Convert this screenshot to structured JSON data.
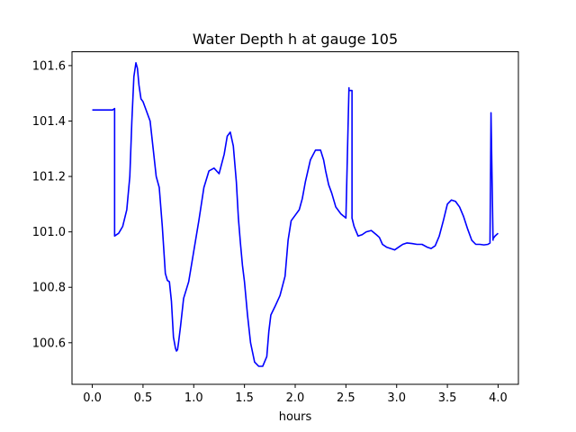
{
  "chart_data": {
    "type": "line",
    "title": "Water Depth h at gauge 105",
    "xlabel": "hours",
    "ylabel": "",
    "xlim": [
      -0.2,
      4.2
    ],
    "ylim": [
      100.45,
      101.65
    ],
    "xticks": [
      0.0,
      0.5,
      1.0,
      1.5,
      2.0,
      2.5,
      3.0,
      3.5,
      4.0
    ],
    "xtick_labels": [
      "0.0",
      "0.5",
      "1.0",
      "1.5",
      "2.0",
      "2.5",
      "3.0",
      "3.5",
      "4.0"
    ],
    "yticks": [
      100.6,
      100.8,
      101.0,
      101.2,
      101.4,
      101.6
    ],
    "ytick_labels": [
      "100.6",
      "100.8",
      "101.0",
      "101.2",
      "101.4",
      "101.6"
    ],
    "grid": false,
    "line_color": "#0000ff",
    "series": [
      {
        "x": [
          0.0,
          0.1,
          0.2,
          0.22,
          0.22,
          0.26,
          0.3,
          0.34,
          0.37,
          0.39,
          0.41,
          0.43,
          0.445,
          0.46,
          0.48,
          0.5,
          0.53,
          0.57,
          0.6,
          0.63,
          0.66,
          0.69,
          0.72,
          0.74,
          0.76,
          0.78,
          0.8,
          0.82,
          0.83,
          0.84,
          0.85,
          0.87,
          0.9,
          0.95,
          1.0,
          1.05,
          1.1,
          1.15,
          1.2,
          1.25,
          1.3,
          1.33,
          1.36,
          1.39,
          1.42,
          1.44,
          1.46,
          1.48,
          1.5,
          1.53,
          1.56,
          1.6,
          1.64,
          1.68,
          1.72,
          1.74,
          1.76,
          1.8,
          1.85,
          1.9,
          1.93,
          1.96,
          2.0,
          2.04,
          2.07,
          2.1,
          2.15,
          2.2,
          2.25,
          2.28,
          2.3,
          2.33,
          2.36,
          2.4,
          2.45,
          2.5,
          2.53,
          2.53,
          2.56,
          2.56,
          2.58,
          2.62,
          2.66,
          2.7,
          2.75,
          2.8,
          2.83,
          2.86,
          2.9,
          2.94,
          2.98,
          3.02,
          3.06,
          3.1,
          3.15,
          3.2,
          3.25,
          3.3,
          3.34,
          3.38,
          3.42,
          3.46,
          3.5,
          3.54,
          3.58,
          3.62,
          3.66,
          3.7,
          3.74,
          3.78,
          3.82,
          3.86,
          3.9,
          3.92,
          3.93,
          3.93,
          3.95,
          3.95,
          3.97,
          4.0
        ],
        "y": [
          101.44,
          101.44,
          101.44,
          101.445,
          100.985,
          100.995,
          101.02,
          101.08,
          101.2,
          101.4,
          101.56,
          101.61,
          101.59,
          101.53,
          101.48,
          101.47,
          101.44,
          101.4,
          101.3,
          101.2,
          101.16,
          101.02,
          100.85,
          100.825,
          100.82,
          100.75,
          100.62,
          100.58,
          100.57,
          100.575,
          100.6,
          100.66,
          100.76,
          100.82,
          100.93,
          101.04,
          101.16,
          101.22,
          101.23,
          101.21,
          101.28,
          101.345,
          101.36,
          101.31,
          101.18,
          101.05,
          100.96,
          100.88,
          100.82,
          100.7,
          100.6,
          100.53,
          100.515,
          100.515,
          100.55,
          100.64,
          100.7,
          100.73,
          100.77,
          100.84,
          100.97,
          101.04,
          101.06,
          101.08,
          101.12,
          101.18,
          101.26,
          101.295,
          101.295,
          101.26,
          101.22,
          101.17,
          101.14,
          101.09,
          101.065,
          101.05,
          101.52,
          101.51,
          101.51,
          101.05,
          101.02,
          100.985,
          100.99,
          101.0,
          101.005,
          100.99,
          100.98,
          100.955,
          100.945,
          100.94,
          100.935,
          100.945,
          100.955,
          100.96,
          100.958,
          100.955,
          100.955,
          100.945,
          100.94,
          100.95,
          100.985,
          101.04,
          101.1,
          101.115,
          101.11,
          101.09,
          101.055,
          101.01,
          100.97,
          100.955,
          100.955,
          100.953,
          100.955,
          100.96,
          101.42,
          101.43,
          100.97,
          100.975,
          100.985,
          100.995
        ]
      }
    ]
  }
}
